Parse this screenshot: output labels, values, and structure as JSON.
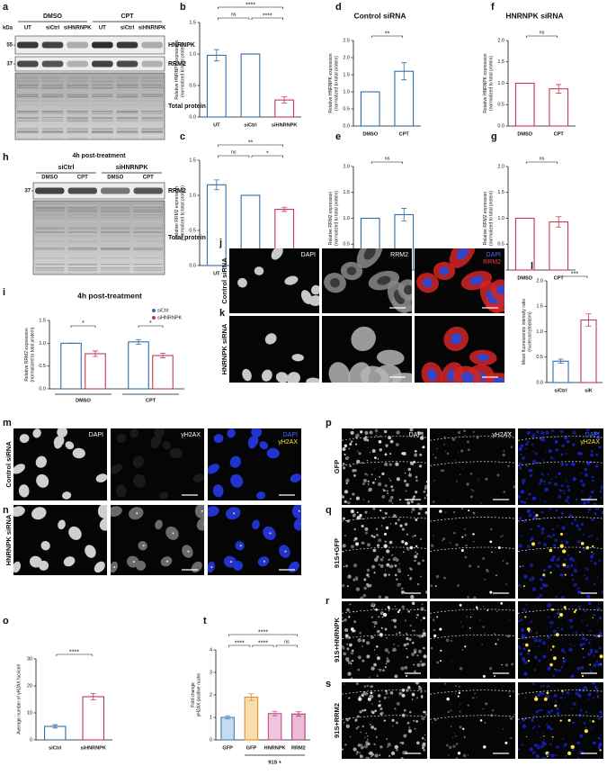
{
  "blots": [
    {
      "panel": "a",
      "unit": "kDa",
      "groups": [
        "DMSO",
        "CPT"
      ],
      "lanes": [
        "UT",
        "siCtrl",
        "siHNRNPK",
        "UT",
        "siCtrl",
        "siHNRNPK"
      ],
      "markers": [
        "55",
        "37"
      ],
      "bands": [
        "HNRNPK",
        "RRM2",
        "Total protein"
      ]
    },
    {
      "panel": "h",
      "title": "4h post-treatment",
      "groups": [
        "siCtrl",
        "siHNRNPK"
      ],
      "lanes": [
        "DMSO",
        "CPT",
        "DMSO",
        "CPT"
      ],
      "markers": [
        "37"
      ],
      "bands": [
        "RRM2",
        "Total protein"
      ]
    }
  ],
  "chart_data": [
    {
      "type": "bar",
      "panel": "b",
      "ylabel": [
        "Relative HNRNPK expression",
        "(normalized to total protein)"
      ],
      "categories": [
        "UT",
        "siCtrl",
        "siHNRNPK"
      ],
      "values": [
        0.98,
        1.0,
        0.27
      ],
      "errors": [
        0.09,
        0.0,
        0.05
      ],
      "colors": [
        "#2f6eaa",
        "#2f6eaa",
        "#c23a55"
      ],
      "ylim": [
        0,
        1.5
      ],
      "yticks": [
        {
          "value": 0,
          "label": "0.0"
        },
        {
          "value": 0.5,
          "label": "0.5"
        },
        {
          "value": 1,
          "label": "1.0"
        },
        {
          "value": 1.5,
          "label": "1.5"
        }
      ],
      "comparisons": [
        {
          "pair": [
            0,
            1
          ],
          "label": "ns"
        },
        {
          "pair": [
            1,
            2
          ],
          "label": "****"
        },
        {
          "pair": [
            0,
            2
          ],
          "label": "****"
        }
      ]
    },
    {
      "type": "bar",
      "panel": "c",
      "ylabel": [
        "Relative RRM2 expression",
        "(normalized to total protein)"
      ],
      "categories": [
        "UT",
        "siCtrl",
        "siHNRNPK"
      ],
      "values": [
        1.15,
        1.0,
        0.8
      ],
      "errors": [
        0.07,
        0.0,
        0.03
      ],
      "colors": [
        "#2f6eaa",
        "#2f6eaa",
        "#c23a55"
      ],
      "ylim": [
        0,
        1.5
      ],
      "yticks": [
        {
          "value": 0,
          "label": "0.0"
        },
        {
          "value": 0.5,
          "label": "0.5"
        },
        {
          "value": 1,
          "label": "1.0"
        },
        {
          "value": 1.5,
          "label": "1.5"
        }
      ],
      "comparisons": [
        {
          "pair": [
            0,
            1
          ],
          "label": "ns"
        },
        {
          "pair": [
            1,
            2
          ],
          "label": "*"
        },
        {
          "pair": [
            0,
            2
          ],
          "label": "**"
        }
      ]
    },
    {
      "type": "bar",
      "panel": "d",
      "title": "Control siRNA",
      "ylabel": [
        "Relative HNRNPK expression",
        "(normalized to total protein)"
      ],
      "categories": [
        "DMSO",
        "CPT"
      ],
      "values": [
        1.0,
        1.6
      ],
      "errors": [
        0.0,
        0.25
      ],
      "colors": [
        "#2f6eaa",
        "#2f6eaa"
      ],
      "ylim": [
        0,
        2.5
      ],
      "yticks": [
        {
          "value": 0,
          "label": "0.0"
        },
        {
          "value": 0.5,
          "label": "0.5"
        },
        {
          "value": 1,
          "label": "1.0"
        },
        {
          "value": 1.5,
          "label": "1.5"
        },
        {
          "value": 2,
          "label": "2.0"
        },
        {
          "value": 2.5,
          "label": "2.5"
        }
      ],
      "comparisons": [
        {
          "pair": [
            0,
            1
          ],
          "label": "**"
        }
      ]
    },
    {
      "type": "bar",
      "panel": "e",
      "ylabel": [
        "Relative RRM2 expression",
        "(normalized to total protein)"
      ],
      "categories": [
        "DMSO",
        "CPT"
      ],
      "values": [
        1.0,
        1.07
      ],
      "errors": [
        0.0,
        0.12
      ],
      "colors": [
        "#2f6eaa",
        "#2f6eaa"
      ],
      "ylim": [
        0,
        2
      ],
      "yticks": [
        {
          "value": 0,
          "label": "0.0"
        },
        {
          "value": 0.5,
          "label": "0.5"
        },
        {
          "value": 1,
          "label": "1.0"
        },
        {
          "value": 1.5,
          "label": "1.5"
        },
        {
          "value": 2,
          "label": "2.0"
        }
      ],
      "comparisons": [
        {
          "pair": [
            0,
            1
          ],
          "label": "ns"
        }
      ]
    },
    {
      "type": "bar",
      "panel": "f",
      "title": "HNRNPK siRNA",
      "ylabel": [
        "Relative HNRNPK expression",
        "(normalized to total protein)"
      ],
      "categories": [
        "DMSO",
        "CPT"
      ],
      "values": [
        1.0,
        0.87
      ],
      "errors": [
        0.0,
        0.1
      ],
      "colors": [
        "#c23a55",
        "#c23a55"
      ],
      "ylim": [
        0,
        2
      ],
      "yticks": [
        {
          "value": 0,
          "label": "0.0"
        },
        {
          "value": 0.5,
          "label": "0.5"
        },
        {
          "value": 1,
          "label": "1.0"
        },
        {
          "value": 1.5,
          "label": "1.5"
        },
        {
          "value": 2,
          "label": "2.0"
        }
      ],
      "comparisons": [
        {
          "pair": [
            0,
            1
          ],
          "label": "ns"
        }
      ]
    },
    {
      "type": "bar",
      "panel": "g",
      "ylabel": [
        "Relative RRM2 expression",
        "(normalized to total protein)"
      ],
      "categories": [
        "DMSO",
        "CPT"
      ],
      "values": [
        1.0,
        0.93
      ],
      "errors": [
        0.0,
        0.1
      ],
      "colors": [
        "#c23a55",
        "#c23a55"
      ],
      "ylim": [
        0,
        2
      ],
      "yticks": [
        {
          "value": 0,
          "label": "0.0"
        },
        {
          "value": 0.5,
          "label": "0.5"
        },
        {
          "value": 1,
          "label": "1.0"
        },
        {
          "value": 1.5,
          "label": "1.5"
        },
        {
          "value": 2,
          "label": "2.0"
        }
      ],
      "comparisons": [
        {
          "pair": [
            0,
            1
          ],
          "label": "ns"
        }
      ]
    },
    {
      "type": "bar",
      "panel": "i",
      "title": "4h post-treatment",
      "ylabel": [
        "Relative RRM2 expression",
        "(normalized to total protein)"
      ],
      "categories": [
        "DMSO",
        "CPT"
      ],
      "series": [
        {
          "name": "siCtrl",
          "color": "#2f6eaa",
          "values": [
            1.0,
            1.03
          ],
          "errors": [
            0.0,
            0.05
          ]
        },
        {
          "name": "siHNRNPK",
          "color": "#c23a55",
          "values": [
            0.77,
            0.73
          ],
          "errors": [
            0.06,
            0.05
          ]
        }
      ],
      "ylim": [
        0,
        1.5
      ],
      "yticks": [
        {
          "value": 0,
          "label": "0.0"
        },
        {
          "value": 0.5,
          "label": "0.5"
        },
        {
          "value": 1,
          "label": "1.0"
        },
        {
          "value": 1.5,
          "label": "1.5"
        }
      ],
      "comparisons": [
        {
          "group": 0,
          "label": "*"
        },
        {
          "group": 1,
          "label": "*"
        }
      ]
    },
    {
      "type": "bar",
      "panel": "l",
      "ylabel": [
        "Mean fluorescence intensity ratio",
        "(nucleus/cytoplasm)"
      ],
      "categories": [
        "siCtrl",
        "siK"
      ],
      "values": [
        0.42,
        1.23
      ],
      "errors": [
        0.04,
        0.12
      ],
      "colors": [
        "#2f6eaa",
        "#c23a55"
      ],
      "ylim": [
        0,
        2
      ],
      "yticks": [
        {
          "value": 0,
          "label": "0.0"
        },
        {
          "value": 0.5,
          "label": "0.5"
        },
        {
          "value": 1,
          "label": "1.0"
        },
        {
          "value": 1.5,
          "label": "1.5"
        },
        {
          "value": 2,
          "label": "2.0"
        }
      ],
      "comparisons": [
        {
          "pair": [
            0,
            1
          ],
          "label": "***"
        }
      ]
    },
    {
      "type": "bar",
      "panel": "o",
      "ylabel": [
        "Average number of γH2AX foci/cell"
      ],
      "categories": [
        "siCtrl",
        "siHNRNPK"
      ],
      "values": [
        5,
        16
      ],
      "errors": [
        0.6,
        1.2
      ],
      "colors": [
        "#2f6eaa",
        "#c23a55"
      ],
      "ylim": [
        0,
        30
      ],
      "yticks": [
        0,
        10,
        20,
        30
      ],
      "comparisons": [
        {
          "pair": [
            0,
            1
          ],
          "label": "****"
        }
      ]
    },
    {
      "type": "bar",
      "panel": "t",
      "ylabel": [
        "Fold change",
        "γH2AX positive nuclei"
      ],
      "categories": [
        "GFP",
        "GFP",
        "HNRNPK",
        "RRM2"
      ],
      "values": [
        1.0,
        1.9,
        1.17,
        1.15
      ],
      "errors": [
        0.07,
        0.15,
        0.1,
        0.1
      ],
      "colors": [
        "#4a7fb5",
        "#e0902a",
        "#c4508a",
        "#b03a7a"
      ],
      "fills": [
        "#c6dbef",
        "#f9dcae",
        "#efc6dd",
        "#eabcd6"
      ],
      "group_label": "91S +",
      "group_span": [
        1,
        3
      ],
      "ylim": [
        0,
        4
      ],
      "yticks": [
        0,
        1,
        2,
        3,
        4
      ],
      "comparisons": [
        {
          "pair": [
            0,
            1
          ],
          "label": "****"
        },
        {
          "pair": [
            1,
            2
          ],
          "label": "****"
        },
        {
          "pair": [
            2,
            3
          ],
          "label": "ns"
        },
        {
          "pair": [
            0,
            3
          ],
          "label": "****"
        }
      ]
    }
  ],
  "micrographs": [
    {
      "panels": [
        "j",
        "k"
      ],
      "channels": [
        "DAPI",
        "RRM2"
      ],
      "rows": [
        "Control siRNA",
        "HNRNPK siRNA"
      ]
    },
    {
      "panels": [
        "m",
        "n"
      ],
      "channels": [
        "DAPI",
        "γH2AX"
      ],
      "rows": [
        "Control siRNA",
        "HNRNPK siRNA"
      ]
    },
    {
      "panels": [
        "p",
        "q",
        "r",
        "s"
      ],
      "channels": [
        "DAPI",
        "γH2AX"
      ],
      "rows": [
        "GFP",
        "91S+GFP",
        "91S+HNRNPK",
        "91S+RRM2"
      ]
    }
  ]
}
